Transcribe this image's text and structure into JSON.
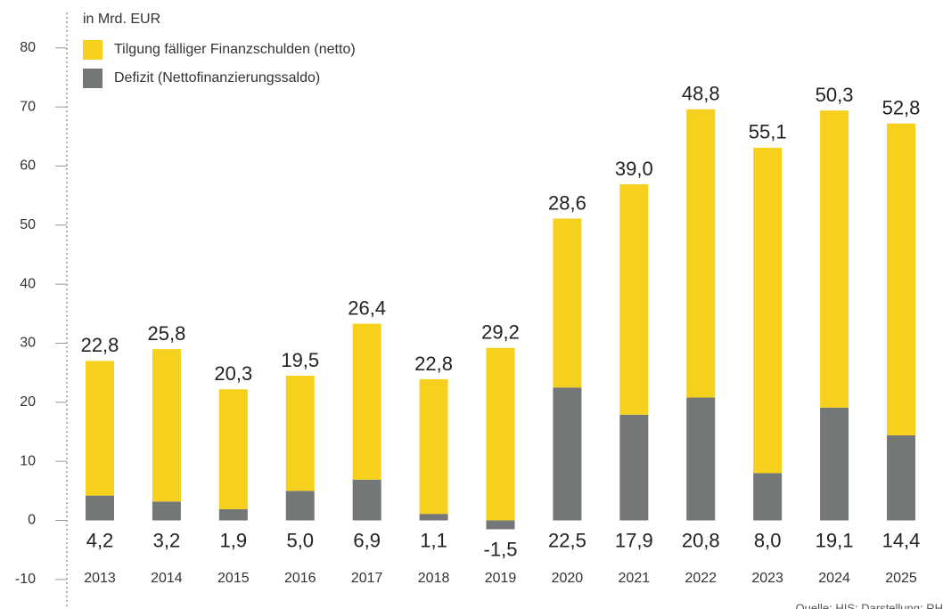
{
  "chart_data": {
    "type": "stacked_bar",
    "unit_label": "in Mrd. EUR",
    "source": "Quelle: HIS; Darstellung: RH",
    "categories": [
      "2013",
      "2014",
      "2015",
      "2016",
      "2017",
      "2018",
      "2019",
      "2020",
      "2021",
      "2022",
      "2023",
      "2024",
      "2025"
    ],
    "series": [
      {
        "name": "Defizit (Nettofinanzierungssaldo)",
        "color": "#737778",
        "values": [
          4.2,
          3.2,
          1.9,
          5.0,
          6.9,
          1.1,
          -1.5,
          22.5,
          17.9,
          20.8,
          8.0,
          19.1,
          14.4
        ],
        "value_labels": [
          "4,2",
          "3,2",
          "1,9",
          "5,0",
          "6,9",
          "1,1",
          "-1,5",
          "22,5",
          "17,9",
          "20,8",
          "8,0",
          "19,1",
          "14,4"
        ]
      },
      {
        "name": "Tilgung fälliger Finanzschulden (netto)",
        "color": "#f5d11e",
        "values": [
          22.8,
          25.8,
          20.3,
          19.5,
          26.4,
          22.8,
          29.2,
          28.6,
          39.0,
          48.8,
          55.1,
          50.3,
          52.8
        ],
        "value_labels": [
          "22,8",
          "25,8",
          "20,3",
          "19,5",
          "26,4",
          "22,8",
          "29,2",
          "28,6",
          "39,0",
          "48,8",
          "55,1",
          "50,3",
          "52,8"
        ]
      }
    ],
    "ylim": [
      -15,
      86
    ],
    "yticks": [
      -10,
      0,
      10,
      20,
      30,
      40,
      50,
      60,
      70,
      80
    ]
  }
}
